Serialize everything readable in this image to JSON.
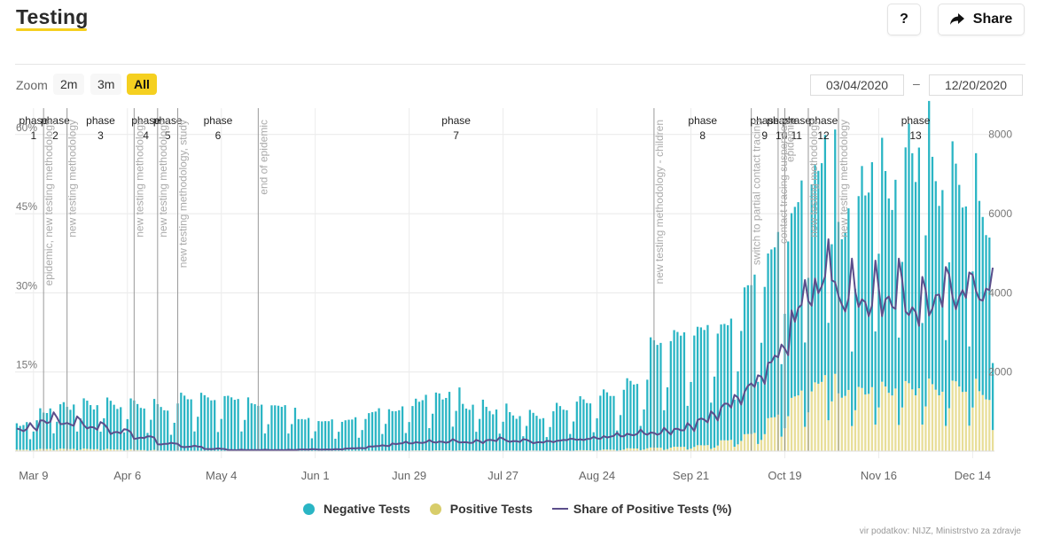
{
  "header": {
    "title": "Testing",
    "help_label": "?",
    "share_label": "Share",
    "share_icon": "share-arrow-icon"
  },
  "toolbar": {
    "zoom_label": "Zoom",
    "zoom_options": [
      {
        "label": "2m",
        "active": false
      },
      {
        "label": "3m",
        "active": false
      },
      {
        "label": "All",
        "active": true
      }
    ],
    "date_from": "03/04/2020",
    "date_sep": "–",
    "date_to": "12/20/2020"
  },
  "legend": [
    {
      "label": "Negative Tests",
      "color": "#2ab5c4",
      "type": "dot"
    },
    {
      "label": "Positive Tests",
      "color": "#d8cd6a",
      "type": "dot"
    },
    {
      "label": "Share of Positive Tests (%)",
      "color": "#5b4e8b",
      "type": "line"
    }
  ],
  "credits": "vir podatkov: NIJZ, Ministrstvo za zdravje",
  "chart_data": {
    "type": "bar",
    "title": "Testing",
    "x_start": "2020-03-04",
    "x_end": "2020-12-20",
    "x_tick_labels": [
      "Mar 9",
      "Apr 6",
      "May 4",
      "Jun 1",
      "Jun 29",
      "Jul 27",
      "Aug 24",
      "Sep 21",
      "Oct 19",
      "Nov 16",
      "Dec 14"
    ],
    "x_tick_dates": [
      "2020-03-09",
      "2020-04-06",
      "2020-05-04",
      "2020-06-01",
      "2020-06-29",
      "2020-07-27",
      "2020-08-24",
      "2020-09-21",
      "2020-10-19",
      "2020-11-16",
      "2020-12-14"
    ],
    "y_left": {
      "label": "Share of Positive Tests (%)",
      "range": [
        0,
        65
      ],
      "ticks": [
        "15%",
        "30%",
        "45%",
        "60%"
      ],
      "tick_values": [
        15,
        30,
        45,
        60
      ]
    },
    "y_right": {
      "label": "Tests",
      "range": [
        0,
        8666
      ],
      "ticks": [
        "2000",
        "4000",
        "6000",
        "8000"
      ],
      "tick_values": [
        2000,
        4000,
        6000,
        8000
      ]
    },
    "stacked": true,
    "colors": {
      "negative": "#2ab5c4",
      "positive": "#e8de98",
      "share": "#5b4e8b",
      "grid": "#e9e9e9",
      "phase_line": "#999999"
    },
    "phases": [
      {
        "label": "phase",
        "num": "1",
        "start": "2020-03-04"
      },
      {
        "label": "phase",
        "num": "2",
        "start": "2020-03-12"
      },
      {
        "label": "phase",
        "num": "3",
        "start": "2020-03-19"
      },
      {
        "label": "phase",
        "num": "4",
        "start": "2020-04-08"
      },
      {
        "label": "phase",
        "num": "5",
        "start": "2020-04-15"
      },
      {
        "label": "phase",
        "num": "6",
        "start": "2020-04-21"
      },
      {
        "label": "phase",
        "num": "7",
        "start": "2020-05-15"
      },
      {
        "label": "phase",
        "num": "8",
        "start": "2020-09-10"
      },
      {
        "label": "phase",
        "num": "9",
        "start": "2020-10-09"
      },
      {
        "label": "phase",
        "num": "10",
        "start": "2020-10-17"
      },
      {
        "label": "phase",
        "num": "11",
        "start": "2020-10-19"
      },
      {
        "label": "phase",
        "num": "12",
        "start": "2020-10-26"
      },
      {
        "label": "phase",
        "num": "13",
        "start": "2020-11-04"
      }
    ],
    "phase_end": "2020-12-20",
    "annotations": [
      {
        "date": "2020-03-12",
        "text": "epidemic, new testing methodology"
      },
      {
        "date": "2020-03-19",
        "text": "new testing methodology"
      },
      {
        "date": "2020-04-08",
        "text": "new testing methodology"
      },
      {
        "date": "2020-04-15",
        "text": "new testing methodology"
      },
      {
        "date": "2020-04-21",
        "text": "new testing methodology, study"
      },
      {
        "date": "2020-05-15",
        "text": "end of epidemic"
      },
      {
        "date": "2020-09-10",
        "text": "new testing methodology - children"
      },
      {
        "date": "2020-10-09",
        "text": "switch to partial contact tracing"
      },
      {
        "date": "2020-10-17",
        "text": "contact tracing suspended"
      },
      {
        "date": "2020-10-19",
        "text": "epidemic"
      },
      {
        "date": "2020-10-26",
        "text": "new testing methodology"
      },
      {
        "date": "2020-11-04",
        "text": "new testing methodology"
      }
    ],
    "weekly_profile": [
      0.62,
      1.0,
      0.97,
      0.93,
      0.9,
      0.95,
      0.38
    ],
    "weekly_peak_tests": [
      {
        "week_of": "2020-03-04",
        "negative": 700,
        "positive": 40
      },
      {
        "week_of": "2020-03-11",
        "negative": 1050,
        "positive": 60
      },
      {
        "week_of": "2020-03-18",
        "negative": 1180,
        "positive": 60
      },
      {
        "week_of": "2020-03-25",
        "negative": 1200,
        "positive": 55
      },
      {
        "week_of": "2020-04-01",
        "negative": 1190,
        "positive": 45
      },
      {
        "week_of": "2020-04-08",
        "negative": 1200,
        "positive": 30
      },
      {
        "week_of": "2020-04-15",
        "negative": 1120,
        "positive": 15
      },
      {
        "week_of": "2020-04-22",
        "negative": 1400,
        "positive": 10
      },
      {
        "week_of": "2020-04-29",
        "negative": 1350,
        "positive": 5
      },
      {
        "week_of": "2020-05-06",
        "negative": 1350,
        "positive": 3
      },
      {
        "week_of": "2020-05-13",
        "negative": 1180,
        "positive": 3
      },
      {
        "week_of": "2020-05-20",
        "negative": 1150,
        "positive": 3
      },
      {
        "week_of": "2020-05-27",
        "negative": 820,
        "positive": 3
      },
      {
        "week_of": "2020-06-03",
        "negative": 780,
        "positive": 3
      },
      {
        "week_of": "2020-06-10",
        "negative": 830,
        "positive": 5
      },
      {
        "week_of": "2020-06-17",
        "negative": 1050,
        "positive": 10
      },
      {
        "week_of": "2020-06-24",
        "negative": 1100,
        "positive": 15
      },
      {
        "week_of": "2020-07-01",
        "negative": 1400,
        "positive": 20
      },
      {
        "week_of": "2020-07-08",
        "negative": 1500,
        "positive": 20
      },
      {
        "week_of": "2020-07-15",
        "negative": 1200,
        "positive": 15
      },
      {
        "week_of": "2020-07-22",
        "negative": 1100,
        "positive": 15
      },
      {
        "week_of": "2020-07-29",
        "negative": 950,
        "positive": 15
      },
      {
        "week_of": "2020-08-05",
        "negative": 920,
        "positive": 15
      },
      {
        "week_of": "2020-08-12",
        "negative": 1150,
        "positive": 20
      },
      {
        "week_of": "2020-08-19",
        "negative": 1300,
        "positive": 25
      },
      {
        "week_of": "2020-08-26",
        "negative": 1450,
        "positive": 40
      },
      {
        "week_of": "2020-09-02",
        "negative": 1700,
        "positive": 70
      },
      {
        "week_of": "2020-09-09",
        "negative": 2700,
        "positive": 90
      },
      {
        "week_of": "2020-09-16",
        "negative": 2900,
        "positive": 110
      },
      {
        "week_of": "2020-09-23",
        "negative": 3000,
        "positive": 150
      },
      {
        "week_of": "2020-09-30",
        "negative": 3000,
        "positive": 280
      },
      {
        "week_of": "2020-10-07",
        "negative": 3900,
        "positive": 450
      },
      {
        "week_of": "2020-10-14",
        "negative": 4500,
        "positive": 900
      },
      {
        "week_of": "2020-10-21",
        "negative": 5200,
        "positive": 1500
      },
      {
        "week_of": "2020-10-28",
        "negative": 6000,
        "positive": 1900
      },
      {
        "week_of": "2020-11-04",
        "negative": 4600,
        "positive": 1550
      },
      {
        "week_of": "2020-11-11",
        "negative": 5800,
        "positive": 1650
      },
      {
        "week_of": "2020-11-18",
        "negative": 5500,
        "positive": 1650
      },
      {
        "week_of": "2020-11-25",
        "negative": 6500,
        "positive": 1700
      },
      {
        "week_of": "2020-12-02",
        "negative": 5600,
        "positive": 1650
      },
      {
        "week_of": "2020-12-09",
        "negative": 5300,
        "positive": 1700
      },
      {
        "week_of": "2020-12-16",
        "negative": 4600,
        "positive": 1450
      }
    ],
    "share_weekly_percent": [
      {
        "week_of": "2020-03-04",
        "value": 4.0
      },
      {
        "week_of": "2020-03-11",
        "value": 5.5
      },
      {
        "week_of": "2020-03-18",
        "value": 5.0
      },
      {
        "week_of": "2020-03-25",
        "value": 4.3
      },
      {
        "week_of": "2020-04-01",
        "value": 3.4
      },
      {
        "week_of": "2020-04-08",
        "value": 2.4
      },
      {
        "week_of": "2020-04-15",
        "value": 1.3
      },
      {
        "week_of": "2020-04-22",
        "value": 0.8
      },
      {
        "week_of": "2020-04-29",
        "value": 0.4
      },
      {
        "week_of": "2020-05-06",
        "value": 0.2
      },
      {
        "week_of": "2020-05-13",
        "value": 0.2
      },
      {
        "week_of": "2020-05-20",
        "value": 0.2
      },
      {
        "week_of": "2020-05-27",
        "value": 0.3
      },
      {
        "week_of": "2020-06-03",
        "value": 0.3
      },
      {
        "week_of": "2020-06-10",
        "value": 0.5
      },
      {
        "week_of": "2020-06-17",
        "value": 0.9
      },
      {
        "week_of": "2020-06-24",
        "value": 1.4
      },
      {
        "week_of": "2020-07-01",
        "value": 1.6
      },
      {
        "week_of": "2020-07-08",
        "value": 1.7
      },
      {
        "week_of": "2020-07-15",
        "value": 1.6
      },
      {
        "week_of": "2020-07-22",
        "value": 2.0
      },
      {
        "week_of": "2020-07-29",
        "value": 1.8
      },
      {
        "week_of": "2020-08-05",
        "value": 1.6
      },
      {
        "week_of": "2020-08-12",
        "value": 2.0
      },
      {
        "week_of": "2020-08-19",
        "value": 2.2
      },
      {
        "week_of": "2020-08-26",
        "value": 2.7
      },
      {
        "week_of": "2020-09-02",
        "value": 3.1
      },
      {
        "week_of": "2020-09-09",
        "value": 3.3
      },
      {
        "week_of": "2020-09-16",
        "value": 4.0
      },
      {
        "week_of": "2020-09-23",
        "value": 5.8
      },
      {
        "week_of": "2020-09-30",
        "value": 8.5
      },
      {
        "week_of": "2020-10-07",
        "value": 12.0
      },
      {
        "week_of": "2020-10-14",
        "value": 17.0
      },
      {
        "week_of": "2020-10-21",
        "value": 26.0
      },
      {
        "week_of": "2020-10-28",
        "value": 31.0
      },
      {
        "week_of": "2020-11-04",
        "value": 27.5
      },
      {
        "week_of": "2020-11-11",
        "value": 27.0
      },
      {
        "week_of": "2020-11-18",
        "value": 27.5
      },
      {
        "week_of": "2020-11-25",
        "value": 25.5
      },
      {
        "week_of": "2020-12-02",
        "value": 28.0
      },
      {
        "week_of": "2020-12-09",
        "value": 28.5
      },
      {
        "week_of": "2020-12-16",
        "value": 29.0
      }
    ]
  }
}
